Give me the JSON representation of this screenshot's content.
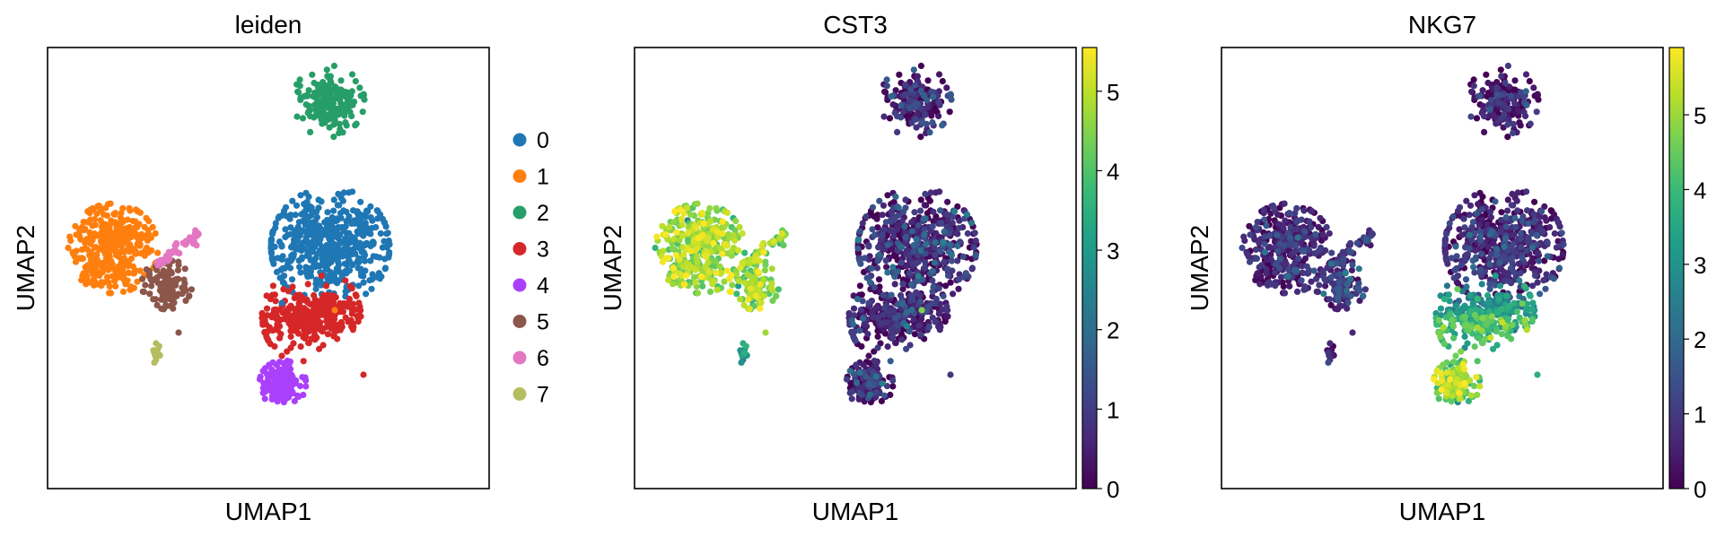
{
  "chart_data": [
    {
      "type": "scatter",
      "title": "leiden",
      "xlabel": "UMAP1",
      "ylabel": "UMAP2",
      "ticks": "hidden",
      "legend": {
        "placement": "right",
        "entries": [
          {
            "label": "0",
            "color": "#1f77b4"
          },
          {
            "label": "1",
            "color": "#ff7f0e"
          },
          {
            "label": "2",
            "color": "#279e68"
          },
          {
            "label": "3",
            "color": "#d62728"
          },
          {
            "label": "4",
            "color": "#aa40fc"
          },
          {
            "label": "5",
            "color": "#8c564b"
          },
          {
            "label": "6",
            "color": "#e377c2"
          },
          {
            "label": "7",
            "color": "#b5bd61"
          }
        ]
      }
    },
    {
      "type": "scatter",
      "title": "CST3",
      "xlabel": "UMAP1",
      "ylabel": "UMAP2",
      "ticks": "hidden",
      "colorbar": {
        "colormap": "viridis",
        "min": 0,
        "max": 5.55,
        "ticks": [
          "0",
          "1",
          "2",
          "3",
          "4",
          "5"
        ]
      }
    },
    {
      "type": "scatter",
      "title": "NKG7",
      "xlabel": "UMAP1",
      "ylabel": "UMAP2",
      "ticks": "hidden",
      "colorbar": {
        "colormap": "viridis",
        "min": 0,
        "max": 5.9,
        "ticks": [
          "0",
          "1",
          "2",
          "3",
          "4",
          "5"
        ]
      }
    }
  ]
}
